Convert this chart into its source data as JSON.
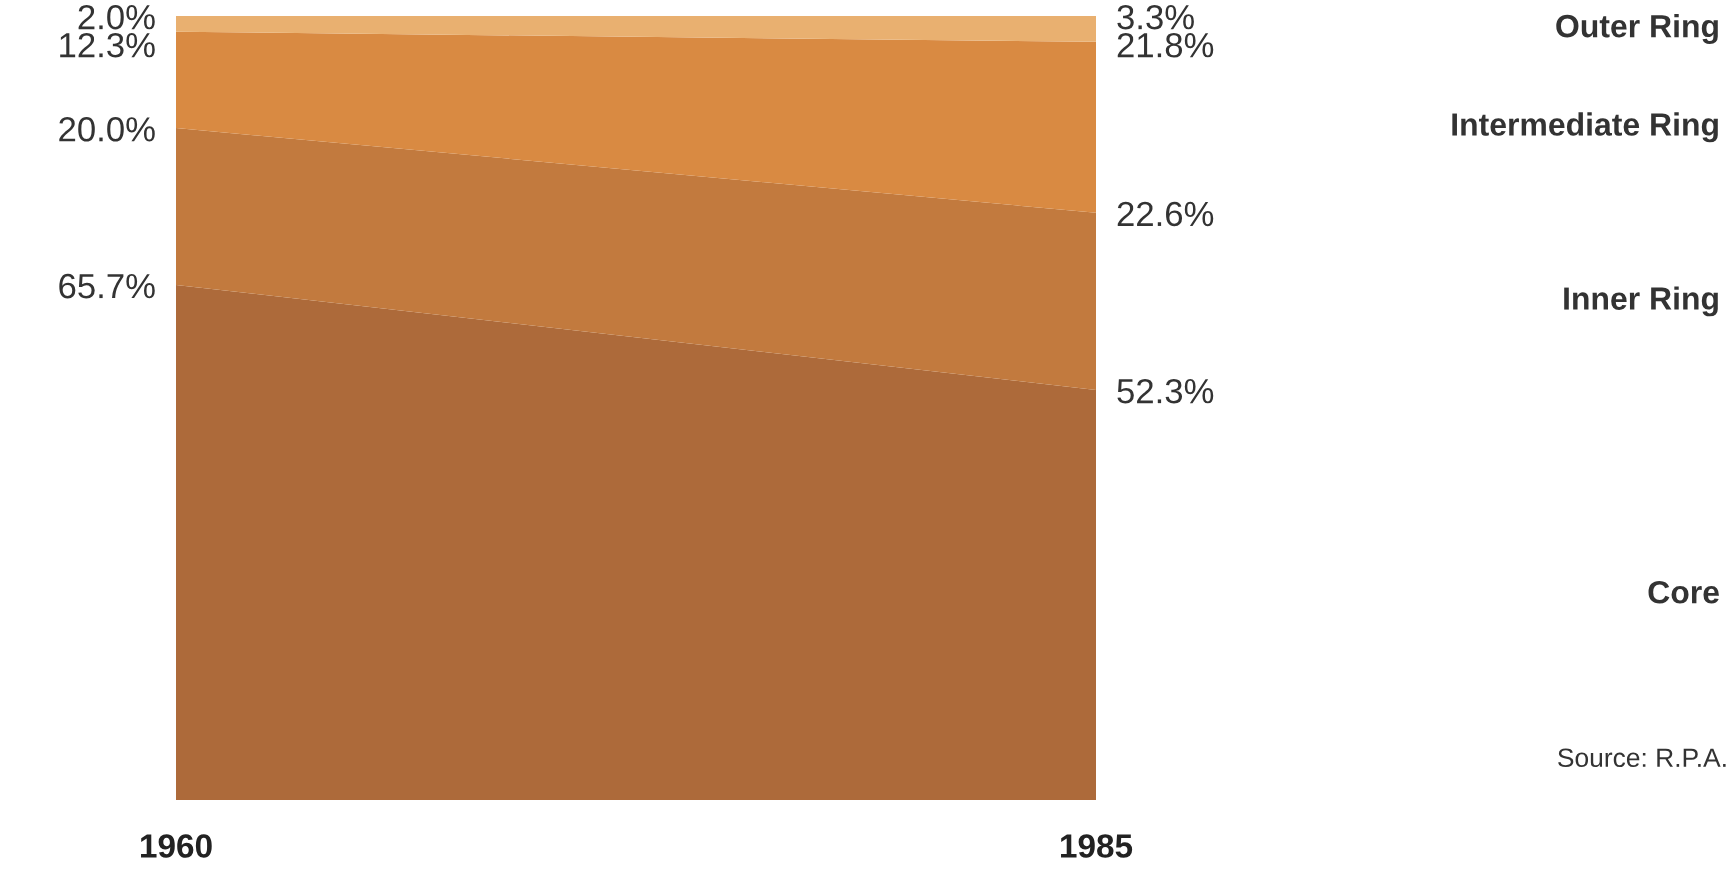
{
  "chart_data": {
    "type": "area",
    "stacked": true,
    "categories": [
      "1960",
      "1985"
    ],
    "series": [
      {
        "name": "Core",
        "color": "#ad6a3a",
        "values": [
          65.7,
          52.3
        ],
        "value_labels": [
          "65.7%",
          "52.3%"
        ]
      },
      {
        "name": "Inner Ring",
        "color": "#c27a3e",
        "values": [
          20.0,
          22.6
        ],
        "value_labels": [
          "20.0%",
          "22.6%"
        ]
      },
      {
        "name": "Intermediate Ring",
        "color": "#d98a42",
        "values": [
          12.3,
          21.8
        ],
        "value_labels": [
          "12.3%",
          "21.8%"
        ]
      },
      {
        "name": "Outer Ring",
        "color": "#e9b070",
        "values": [
          2.0,
          3.3
        ],
        "value_labels": [
          "2.0%",
          "3.3%"
        ]
      }
    ],
    "annotations": [
      "Source: R.P.A."
    ]
  }
}
